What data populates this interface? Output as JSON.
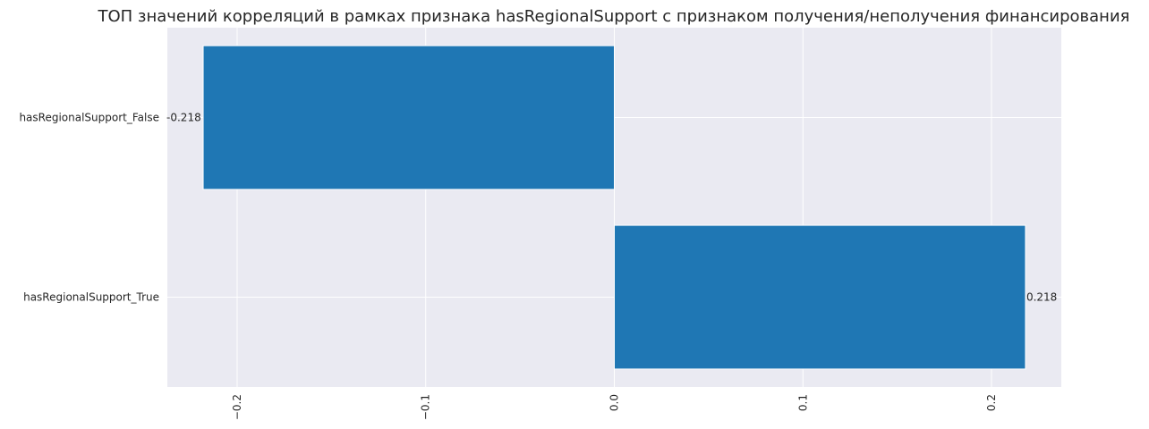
{
  "chart_data": {
    "type": "bar",
    "orientation": "horizontal",
    "title": "ТОП значений корреляций в рамках признака hasRegionalSupport с признаком получения/неполучения финансирования",
    "xlabel": "",
    "ylabel": "",
    "categories": [
      "hasRegionalSupport_False",
      "hasRegionalSupport_True"
    ],
    "values": [
      -0.218,
      0.218
    ],
    "data_labels": [
      "-0.218",
      "0.218"
    ],
    "xlim": [
      -0.237,
      0.237
    ],
    "xticks": [
      -0.2,
      -0.1,
      0.0,
      0.1,
      0.2
    ],
    "xtick_labels": [
      "−0.2",
      "−0.1",
      "0.0",
      "0.1",
      "0.2"
    ],
    "xtick_rotation": "vertical",
    "grid": true,
    "legend": "none",
    "colors": {
      "bar": "#1f77b4",
      "background": "#eaeaf2",
      "grid": "#ffffff",
      "text": "#262626"
    }
  }
}
